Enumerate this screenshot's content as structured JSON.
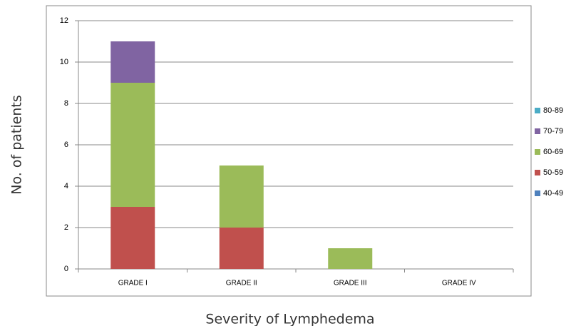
{
  "chart_data": {
    "type": "bar",
    "stacked": true,
    "ylabel": "No. of patients",
    "xlabel": "Severity of Lymphedema",
    "categories": [
      "GRADE I",
      "GRADE II",
      "GRADE III",
      "GRADE IV"
    ],
    "series": [
      {
        "name": "40-49",
        "color": "#4f81bd",
        "values": [
          0,
          0,
          0,
          0
        ]
      },
      {
        "name": "50-59",
        "color": "#c0504d",
        "values": [
          3,
          2,
          0,
          0
        ]
      },
      {
        "name": "60-69",
        "color": "#9bbb59",
        "values": [
          6,
          3,
          1,
          0
        ]
      },
      {
        "name": "70-79",
        "color": "#8064a2",
        "values": [
          2,
          0,
          0,
          0
        ]
      },
      {
        "name": "80-89",
        "color": "#4bacc6",
        "values": [
          0,
          0,
          0,
          0
        ]
      }
    ],
    "ylim": [
      0,
      12
    ],
    "yticks": [
      0,
      2,
      4,
      6,
      8,
      10,
      12
    ],
    "grid": true,
    "legend": "right"
  }
}
